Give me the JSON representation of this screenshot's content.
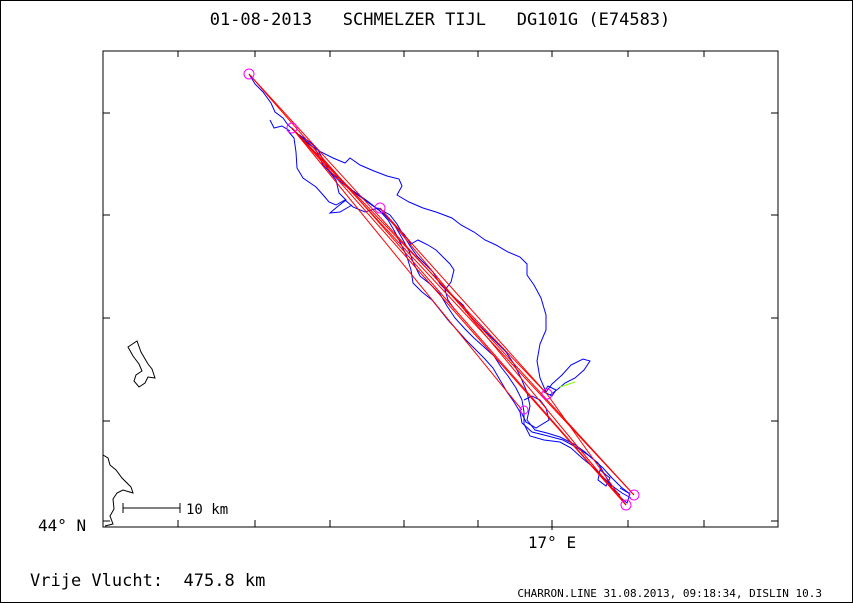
{
  "title": "01-08-2013   SCHMELZER TIJL   DG101G (E74583)",
  "axes": {
    "lat_label": "44° N",
    "lon_label": "17° E"
  },
  "scale": {
    "label": "10 km"
  },
  "summary": "Vrije Vlucht:  475.8 km",
  "footer": "CHARRON.LINE 31.08.2013, 09:18:34, DISLIN 10.3",
  "colors": {
    "track": "#0000ff",
    "task": "#ff0000",
    "turnpoint": "#ff00ff",
    "coast": "#000000"
  }
}
